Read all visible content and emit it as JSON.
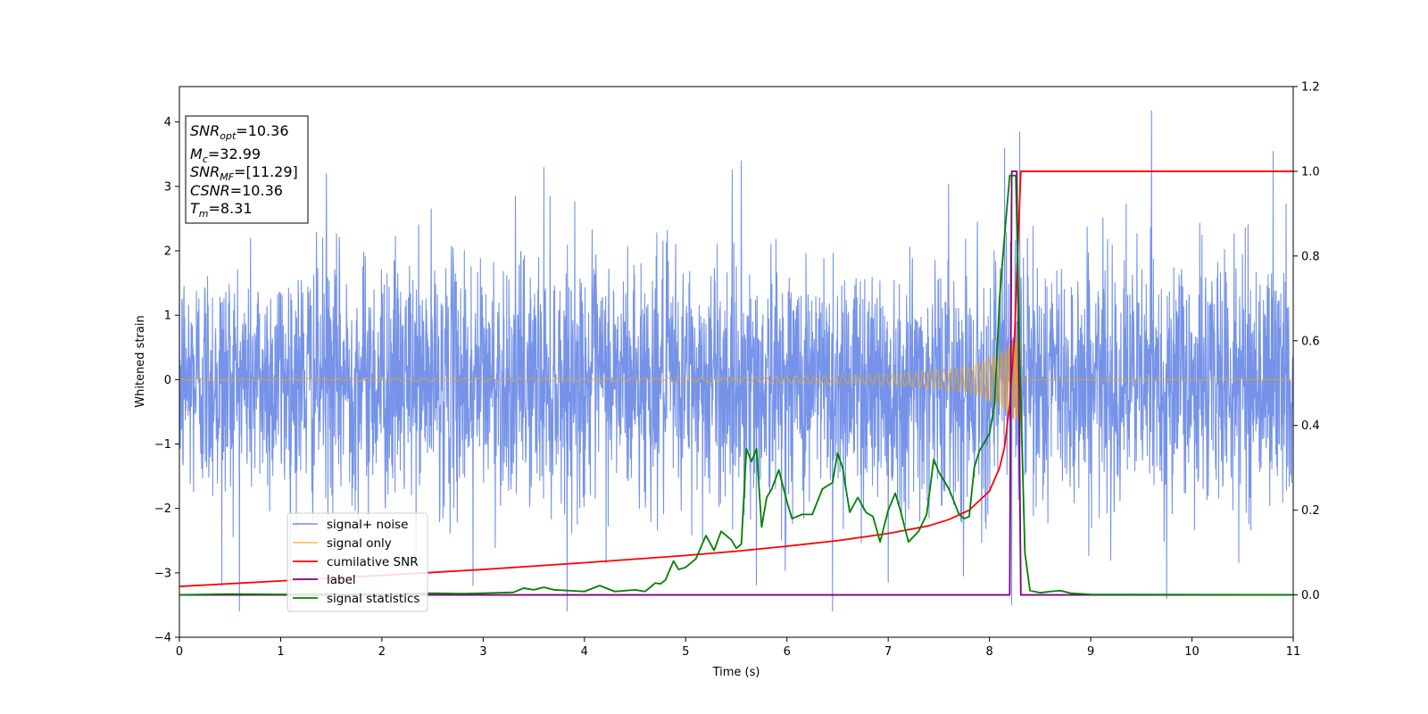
{
  "chart_data": {
    "type": "line",
    "title": "",
    "xlabel": "Time (s)",
    "ylabel": "Whitened strain",
    "xlim": [
      0,
      11
    ],
    "ylim": [
      -4,
      4.55
    ],
    "y2lim": [
      -0.1,
      1.2
    ],
    "x_ticks": [
      0,
      1,
      2,
      3,
      4,
      5,
      6,
      7,
      8,
      9,
      10,
      11
    ],
    "y_ticks": [
      -4,
      -3,
      -2,
      -1,
      0,
      1,
      2,
      3,
      4
    ],
    "y2_ticks": [
      0.0,
      0.2,
      0.4,
      0.6,
      0.8,
      1.0,
      1.2
    ],
    "y_tick_labels": [
      "−4",
      "−3",
      "−2",
      "−1",
      "0",
      "1",
      "2",
      "3",
      "4"
    ],
    "y2_tick_labels": [
      "0.0",
      "0.2",
      "0.4",
      "0.6",
      "0.8",
      "1.0",
      "1.2"
    ],
    "grid": false,
    "legend_position": "lower-left",
    "annotation": {
      "lines": [
        {
          "base": "SNR",
          "sub": "opt",
          "value": "=10.36"
        },
        {
          "base": "M",
          "sub": "c",
          "value": "=32.99"
        },
        {
          "base": "SNR",
          "sub": "MF",
          "value": "=[11.29]"
        },
        {
          "base": "CSNR",
          "sub": "",
          "value": "=10.36"
        },
        {
          "base": "T",
          "sub": "m",
          "value": "=8.31"
        }
      ]
    },
    "series": [
      {
        "name": "signal+ noise",
        "axis": "left",
        "color": "#4169e1",
        "kind": "noise",
        "std": 0.95,
        "x_range": [
          0,
          11
        ],
        "peaks": [
          {
            "x": 0.42,
            "y": -3.2
          },
          {
            "x": 1.45,
            "y": 3.2
          },
          {
            "x": 3.6,
            "y": 3.3
          },
          {
            "x": 5.55,
            "y": 3.4
          },
          {
            "x": 6.45,
            "y": -3.65
          },
          {
            "x": 8.15,
            "y": 3.6
          },
          {
            "x": 8.22,
            "y": -3.5
          },
          {
            "x": 8.3,
            "y": 3.85
          },
          {
            "x": 9.6,
            "y": 4.18
          },
          {
            "x": 9.75,
            "y": -3.4
          },
          {
            "x": 10.8,
            "y": 3.55
          },
          {
            "x": 5.7,
            "y": -3.2
          },
          {
            "x": 7.0,
            "y": -3.15
          },
          {
            "x": 2.9,
            "y": -3.2
          }
        ]
      },
      {
        "name": "signal only",
        "axis": "left",
        "color": "#ffa500",
        "kind": "chirp",
        "merger_time": 8.31,
        "amplitude_points": [
          [
            0,
            0.01
          ],
          [
            5,
            0.03
          ],
          [
            7,
            0.08
          ],
          [
            7.8,
            0.2
          ],
          [
            8.1,
            0.4
          ],
          [
            8.31,
            0.7
          ]
        ]
      },
      {
        "name": "cumilative SNR",
        "axis": "right",
        "color": "#ff0000",
        "points": [
          [
            0,
            0.02
          ],
          [
            1,
            0.033
          ],
          [
            2,
            0.046
          ],
          [
            3,
            0.06
          ],
          [
            4,
            0.076
          ],
          [
            5,
            0.093
          ],
          [
            5.5,
            0.103
          ],
          [
            6,
            0.115
          ],
          [
            6.5,
            0.128
          ],
          [
            7,
            0.145
          ],
          [
            7.4,
            0.163
          ],
          [
            7.6,
            0.178
          ],
          [
            7.8,
            0.2
          ],
          [
            8.0,
            0.245
          ],
          [
            8.1,
            0.3
          ],
          [
            8.15,
            0.35
          ],
          [
            8.2,
            0.45
          ],
          [
            8.25,
            0.62
          ],
          [
            8.28,
            0.82
          ],
          [
            8.31,
            1.0
          ],
          [
            11,
            1.0
          ]
        ]
      },
      {
        "name": "label",
        "axis": "right",
        "color": "#800080",
        "points": [
          [
            0,
            0
          ],
          [
            8.2,
            0
          ],
          [
            8.22,
            1.0
          ],
          [
            8.27,
            1.0
          ],
          [
            8.31,
            0
          ],
          [
            11,
            0
          ]
        ]
      },
      {
        "name": "signal statistics",
        "axis": "right",
        "color": "#008000",
        "points": [
          [
            0,
            0
          ],
          [
            0.5,
            0.002
          ],
          [
            1,
            0.001
          ],
          [
            1.5,
            0.002
          ],
          [
            2,
            0.002
          ],
          [
            2.5,
            0.004
          ],
          [
            2.8,
            0.003
          ],
          [
            3,
            0.004
          ],
          [
            3.3,
            0.006
          ],
          [
            3.4,
            0.016
          ],
          [
            3.5,
            0.012
          ],
          [
            3.6,
            0.018
          ],
          [
            3.7,
            0.012
          ],
          [
            4,
            0.008
          ],
          [
            4.15,
            0.022
          ],
          [
            4.3,
            0.008
          ],
          [
            4.5,
            0.012
          ],
          [
            4.6,
            0.008
          ],
          [
            4.7,
            0.028
          ],
          [
            4.75,
            0.026
          ],
          [
            4.8,
            0.035
          ],
          [
            4.88,
            0.08
          ],
          [
            4.93,
            0.06
          ],
          [
            5.0,
            0.065
          ],
          [
            5.1,
            0.085
          ],
          [
            5.2,
            0.14
          ],
          [
            5.28,
            0.105
          ],
          [
            5.35,
            0.15
          ],
          [
            5.45,
            0.13
          ],
          [
            5.5,
            0.11
          ],
          [
            5.55,
            0.12
          ],
          [
            5.6,
            0.345
          ],
          [
            5.65,
            0.315
          ],
          [
            5.7,
            0.345
          ],
          [
            5.75,
            0.16
          ],
          [
            5.8,
            0.23
          ],
          [
            5.85,
            0.25
          ],
          [
            5.92,
            0.295
          ],
          [
            6.0,
            0.22
          ],
          [
            6.05,
            0.18
          ],
          [
            6.15,
            0.19
          ],
          [
            6.25,
            0.19
          ],
          [
            6.35,
            0.25
          ],
          [
            6.45,
            0.265
          ],
          [
            6.5,
            0.335
          ],
          [
            6.55,
            0.3
          ],
          [
            6.62,
            0.195
          ],
          [
            6.7,
            0.23
          ],
          [
            6.78,
            0.195
          ],
          [
            6.85,
            0.185
          ],
          [
            6.92,
            0.125
          ],
          [
            7.0,
            0.2
          ],
          [
            7.07,
            0.24
          ],
          [
            7.12,
            0.2
          ],
          [
            7.2,
            0.125
          ],
          [
            7.3,
            0.15
          ],
          [
            7.38,
            0.19
          ],
          [
            7.45,
            0.32
          ],
          [
            7.5,
            0.29
          ],
          [
            7.55,
            0.27
          ],
          [
            7.6,
            0.25
          ],
          [
            7.65,
            0.22
          ],
          [
            7.7,
            0.19
          ],
          [
            7.75,
            0.18
          ],
          [
            7.8,
            0.185
          ],
          [
            7.85,
            0.3
          ],
          [
            7.9,
            0.34
          ],
          [
            8.0,
            0.38
          ],
          [
            8.05,
            0.45
          ],
          [
            8.1,
            0.7
          ],
          [
            8.15,
            0.85
          ],
          [
            8.2,
            0.99
          ],
          [
            8.26,
            0.99
          ],
          [
            8.3,
            0.55
          ],
          [
            8.35,
            0.1
          ],
          [
            8.4,
            0.01
          ],
          [
            8.5,
            0.005
          ],
          [
            8.6,
            0.008
          ],
          [
            8.7,
            0.01
          ],
          [
            8.8,
            0.004
          ],
          [
            9.0,
            0.001
          ],
          [
            11,
            0
          ]
        ]
      }
    ]
  }
}
